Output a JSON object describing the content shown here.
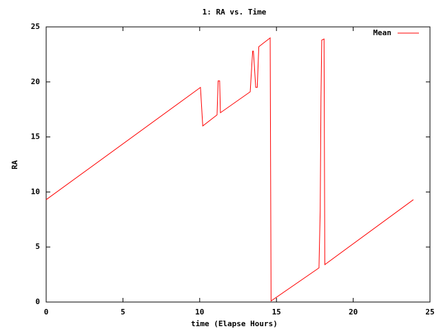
{
  "chart_data": {
    "type": "line",
    "title": "1: RA vs. Time",
    "xlabel": "time (Elapse Hours)",
    "ylabel": "RA",
    "x": [
      0,
      10.05,
      10.2,
      11.13,
      11.2,
      11.3,
      11.35,
      13.29,
      13.45,
      13.5,
      13.65,
      13.75,
      13.85,
      14.59,
      14.62,
      14.65,
      17.77,
      17.85,
      17.9,
      17.95,
      18.1,
      18.15,
      23.92
    ],
    "series": [
      {
        "name": "Mean",
        "color": "#ff0000",
        "values": [
          9.3,
          19.5,
          16.0,
          17.0,
          20.1,
          20.1,
          17.2,
          19.1,
          22.8,
          22.8,
          19.5,
          19.5,
          23.2,
          24.0,
          12.0,
          0.1,
          3.1,
          8.3,
          18.5,
          23.8,
          23.9,
          3.4,
          9.3
        ]
      }
    ],
    "xlim": [
      0,
      25
    ],
    "xticks": [
      0,
      5,
      10,
      15,
      20,
      25
    ],
    "ylim": [
      0,
      25
    ],
    "yticks": [
      0,
      5,
      10,
      15,
      20,
      25
    ],
    "legend": "top-right"
  }
}
